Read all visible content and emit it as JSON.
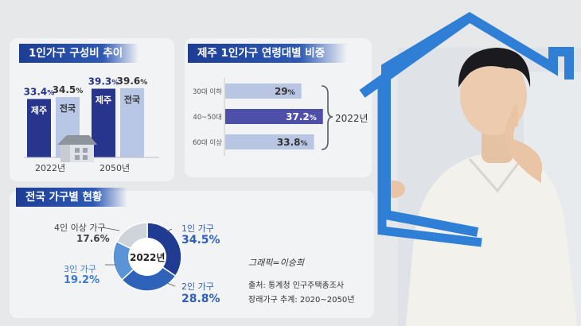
{
  "colors": {
    "jeju_bar": "#27368c",
    "national_bar": "#b9c7e6",
    "highlight_bar": "#4e4fa8",
    "light_bar": "#b8c6e4",
    "donut_1": "#1f3c92",
    "donut_2": "#2f63ba",
    "donut_3": "#5b93d7",
    "donut_4": "#cfd3da",
    "frame_blue": "#2f7fd6"
  },
  "icons": [
    "house-icon",
    "bracket-icon",
    "house-frame-icon",
    "person-illustration"
  ],
  "panel1": {
    "title": "1인가구 구성비 추이",
    "groups": [
      {
        "year": "2022년",
        "bars": [
          {
            "label": "제주",
            "value_text": "33.4",
            "pct": "%"
          },
          {
            "label": "전국",
            "value_text": "34.5",
            "pct": "%"
          }
        ]
      },
      {
        "year": "2050년",
        "bars": [
          {
            "label": "제주",
            "value_text": "39.3",
            "pct": "%"
          },
          {
            "label": "전국",
            "value_text": "39.6",
            "pct": "%"
          }
        ]
      }
    ]
  },
  "panel2": {
    "title": "제주 1인가구 연령대별 비중",
    "year": "2022년",
    "rows": [
      {
        "label": "30대 이하",
        "value_text": "29",
        "pct": "%"
      },
      {
        "label": "40~50대",
        "value_text": "37.2",
        "pct": "%"
      },
      {
        "label": "60대 이상",
        "value_text": "33.8",
        "pct": "%"
      }
    ]
  },
  "panel3": {
    "title": "전국 가구별 현황",
    "center": "2022년",
    "slices": [
      {
        "label": "1인 가구",
        "value_text": "34.5%"
      },
      {
        "label": "2인 가구",
        "value_text": "28.8%"
      },
      {
        "label": "3인 가구",
        "value_text": "19.2%"
      },
      {
        "label": "4인 이상 가구",
        "value_text": "17.6%"
      }
    ],
    "credit": "그래픽=이승희",
    "source_1": "출처: 통계청 인구주택총조사",
    "source_2": "장래가구 추계: 2020~2050년"
  },
  "chart_data": [
    {
      "type": "bar",
      "title": "1인가구 구성비 추이",
      "categories": [
        "2022년",
        "2050년"
      ],
      "series": [
        {
          "name": "제주",
          "values": [
            33.4,
            39.3
          ]
        },
        {
          "name": "전국",
          "values": [
            34.5,
            39.6
          ]
        }
      ],
      "unit": "%"
    },
    {
      "type": "bar",
      "title": "제주 1인가구 연령대별 비중",
      "categories": [
        "30대 이하",
        "40~50대",
        "60대 이상"
      ],
      "values": [
        29,
        37.2,
        33.8
      ],
      "orientation": "horizontal",
      "unit": "%"
    },
    {
      "type": "pie",
      "title": "전국 가구별 현황",
      "categories": [
        "1인 가구",
        "2인 가구",
        "3인 가구",
        "4인 이상 가구"
      ],
      "values": [
        34.5,
        28.8,
        19.2,
        17.6
      ],
      "unit": "%"
    }
  ]
}
